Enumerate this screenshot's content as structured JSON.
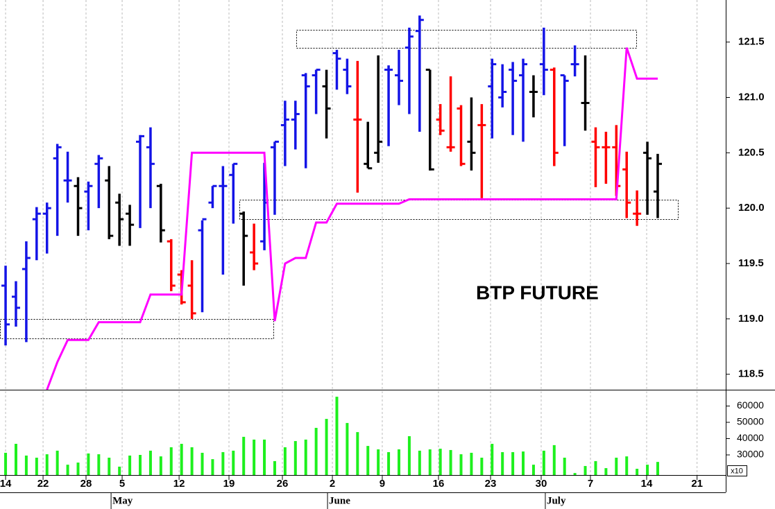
{
  "chart_data": [
    {
      "type": "ohlc",
      "annotation": "BTP FUTURE",
      "xlim": [
        -0.54,
        69.57
      ],
      "ylim": [
        118.36,
        121.88
      ],
      "yticks": [
        118.5,
        {
          "value": 119,
          "label": "119.0"
        },
        119.5,
        {
          "value": 120,
          "label": "120.0"
        },
        120.5,
        {
          "value": 121,
          "label": "121.0"
        },
        121.5
      ],
      "open": [
        119.3,
        119.2,
        119.45,
        119.9,
        119.95,
        120.45,
        120.25,
        120.2,
        120.15,
        120.4,
        120.25,
        120.05,
        119.95,
        120.6,
        120.55,
        120.2,
        119.7,
        119.4,
        119.3,
        119.8,
        120.05,
        120.2,
        120.3,
        119.95,
        119.6,
        119.7,
        120.55,
        120.75,
        120.8,
        121.2,
        121.2,
        121.1,
        121.4,
        121.25,
        120.8,
        120.4,
        120.5,
        121.25,
        121.2,
        121.45,
        121.6,
        121.25,
        120.8,
        120.55,
        120.9,
        120.6,
        120.75,
        121.1,
        121.0,
        121.25,
        121.2,
        121.05,
        121.3,
        121.25,
        121.2,
        121.3,
        120.95,
        120.6,
        120.55,
        120.55,
        120.35,
        119.95,
        120.5,
        120.15
      ],
      "high": [
        119.48,
        119.34,
        119.7,
        120.01,
        120.05,
        120.58,
        120.51,
        120.28,
        120.24,
        120.48,
        120.38,
        120.13,
        120.03,
        120.66,
        120.73,
        120.22,
        119.72,
        119.44,
        119.53,
        119.89,
        120.2,
        120.38,
        120.4,
        119.97,
        119.86,
        120.41,
        120.6,
        120.97,
        120.97,
        121.22,
        121.25,
        121.25,
        121.43,
        121.35,
        121.33,
        120.78,
        121.38,
        121.29,
        121.43,
        121.63,
        121.74,
        121.25,
        120.94,
        121.19,
        120.93,
        121.0,
        120.94,
        121.35,
        121.3,
        121.32,
        121.35,
        121.2,
        121.63,
        121.27,
        121.2,
        121.47,
        121.38,
        120.73,
        120.69,
        120.75,
        120.51,
        120.16,
        120.6,
        120.49
      ],
      "low": [
        118.76,
        118.93,
        118.79,
        119.53,
        119.59,
        119.75,
        120.05,
        119.75,
        119.8,
        120.0,
        119.72,
        119.66,
        119.66,
        119.82,
        120.0,
        119.69,
        119.25,
        119.13,
        119.0,
        119.06,
        120.0,
        119.4,
        119.86,
        119.3,
        119.44,
        119.62,
        119.94,
        120.38,
        120.53,
        120.36,
        120.85,
        120.63,
        121.07,
        121.03,
        120.14,
        120.36,
        120.41,
        120.56,
        120.93,
        120.85,
        120.69,
        120.34,
        120.66,
        120.51,
        120.38,
        120.34,
        120.09,
        120.63,
        120.91,
        120.66,
        120.6,
        120.82,
        121.02,
        120.38,
        120.56,
        121.19,
        120.7,
        120.19,
        120.22,
        120.11,
        119.91,
        119.84,
        119.94,
        119.91
      ],
      "close": [
        118.95,
        119.1,
        119.55,
        119.95,
        120.0,
        120.55,
        120.25,
        120.0,
        120.2,
        120.45,
        119.75,
        119.9,
        119.85,
        120.65,
        120.4,
        119.8,
        119.3,
        119.15,
        119.05,
        119.9,
        120.2,
        120.2,
        120.4,
        119.75,
        119.5,
        120.05,
        120.6,
        120.8,
        120.85,
        121.1,
        121.25,
        120.9,
        121.35,
        121.1,
        120.8,
        120.36,
        120.6,
        121.25,
        121.15,
        121.55,
        121.7,
        120.35,
        120.7,
        120.55,
        120.4,
        120.5,
        120.75,
        121.3,
        121.05,
        121.15,
        121.3,
        121.05,
        121.25,
        120.5,
        121.15,
        121.3,
        120.95,
        120.55,
        120.55,
        120.2,
        120.05,
        119.95,
        120.45,
        120.4
      ],
      "bar_colors": [
        "#1414e6",
        "#1414e6",
        "#1414e6",
        "#1414e6",
        "#1414e6",
        "#1414e6",
        "#1414e6",
        "#000000",
        "#1414e6",
        "#1414e6",
        "#000000",
        "#000000",
        "#000000",
        "#1414e6",
        "#1414e6",
        "#000000",
        "#ff0000",
        "#ff0000",
        "#ff0000",
        "#1414e6",
        "#1414e6",
        "#1414e6",
        "#1414e6",
        "#000000",
        "#ff0000",
        "#1414e6",
        "#1414e6",
        "#1414e6",
        "#1414e6",
        "#1414e6",
        "#1414e6",
        "#000000",
        "#1414e6",
        "#1414e6",
        "#ff0000",
        "#000000",
        "#000000",
        "#1414e6",
        "#1414e6",
        "#1414e6",
        "#1414e6",
        "#000000",
        "#ff0000",
        "#ff0000",
        "#ff0000",
        "#000000",
        "#ff0000",
        "#1414e6",
        "#1414e6",
        "#1414e6",
        "#1414e6",
        "#000000",
        "#1414e6",
        "#ff0000",
        "#1414e6",
        "#1414e6",
        "#000000",
        "#ff0000",
        "#ff0000",
        "#ff0000",
        "#ff0000",
        "#ff0000",
        "#000000",
        "#000000"
      ],
      "line": {
        "color": "#ff00ff",
        "x": [
          4,
          5,
          6,
          8,
          9,
          13,
          14,
          17,
          18,
          25,
          26,
          27,
          28,
          29,
          30,
          31,
          32,
          38,
          39,
          59,
          60,
          61,
          63
        ],
        "values": [
          118.36,
          118.61,
          118.81,
          118.81,
          118.97,
          118.97,
          119.22,
          119.22,
          120.5,
          120.5,
          118.98,
          119.5,
          119.55,
          119.55,
          119.87,
          119.87,
          120.04,
          120.04,
          120.08,
          120.08,
          121.45,
          121.17,
          121.17
        ]
      }
    },
    {
      "type": "bar",
      "color": "#1ef01e",
      "multiplier_label": "x10",
      "xlim": [
        -0.54,
        69.57
      ],
      "ylim": [
        17660,
        70000
      ],
      "yticks": [
        30000,
        40000,
        50000,
        60000
      ],
      "values": [
        31300,
        36800,
        29600,
        28300,
        30400,
        32600,
        24000,
        25300,
        30900,
        30400,
        28300,
        22800,
        29600,
        30000,
        32600,
        29100,
        34700,
        36800,
        34700,
        31300,
        27400,
        31700,
        32600,
        41100,
        39400,
        39400,
        26200,
        34700,
        38500,
        39400,
        46600,
        52100,
        65700,
        49600,
        44000,
        35500,
        33400,
        31700,
        33400,
        41500,
        32600,
        33400,
        33800,
        33000,
        30400,
        31300,
        28300,
        36800,
        31700,
        31700,
        32100,
        24000,
        32600,
        36000,
        28300,
        18900,
        23200,
        26200,
        21900,
        28300,
        29100,
        21500,
        24000,
        25700
      ],
      "xticks": [
        {
          "value": 0,
          "label": "14"
        },
        {
          "value": 3.62,
          "label": "22"
        },
        {
          "value": 7.77,
          "label": "28"
        },
        {
          "value": 11.26,
          "label": "5"
        },
        {
          "value": 16.76,
          "label": "12"
        },
        {
          "value": 21.58,
          "label": "19"
        },
        {
          "value": 26.74,
          "label": "26"
        },
        {
          "value": 31.57,
          "label": "2"
        },
        {
          "value": 36.39,
          "label": "9"
        },
        {
          "value": 41.82,
          "label": "16"
        },
        {
          "value": 46.85,
          "label": "23"
        },
        {
          "value": 51.74,
          "label": "30"
        },
        {
          "value": 56.5,
          "label": "7"
        },
        {
          "value": 61.93,
          "label": "14"
        },
        {
          "value": 66.8,
          "label": "21"
        }
      ],
      "month_ticks": [
        {
          "value": 10.19,
          "label": "May"
        },
        {
          "value": 31.1,
          "label": "June"
        },
        {
          "value": 52.14,
          "label": "July"
        }
      ]
    }
  ]
}
